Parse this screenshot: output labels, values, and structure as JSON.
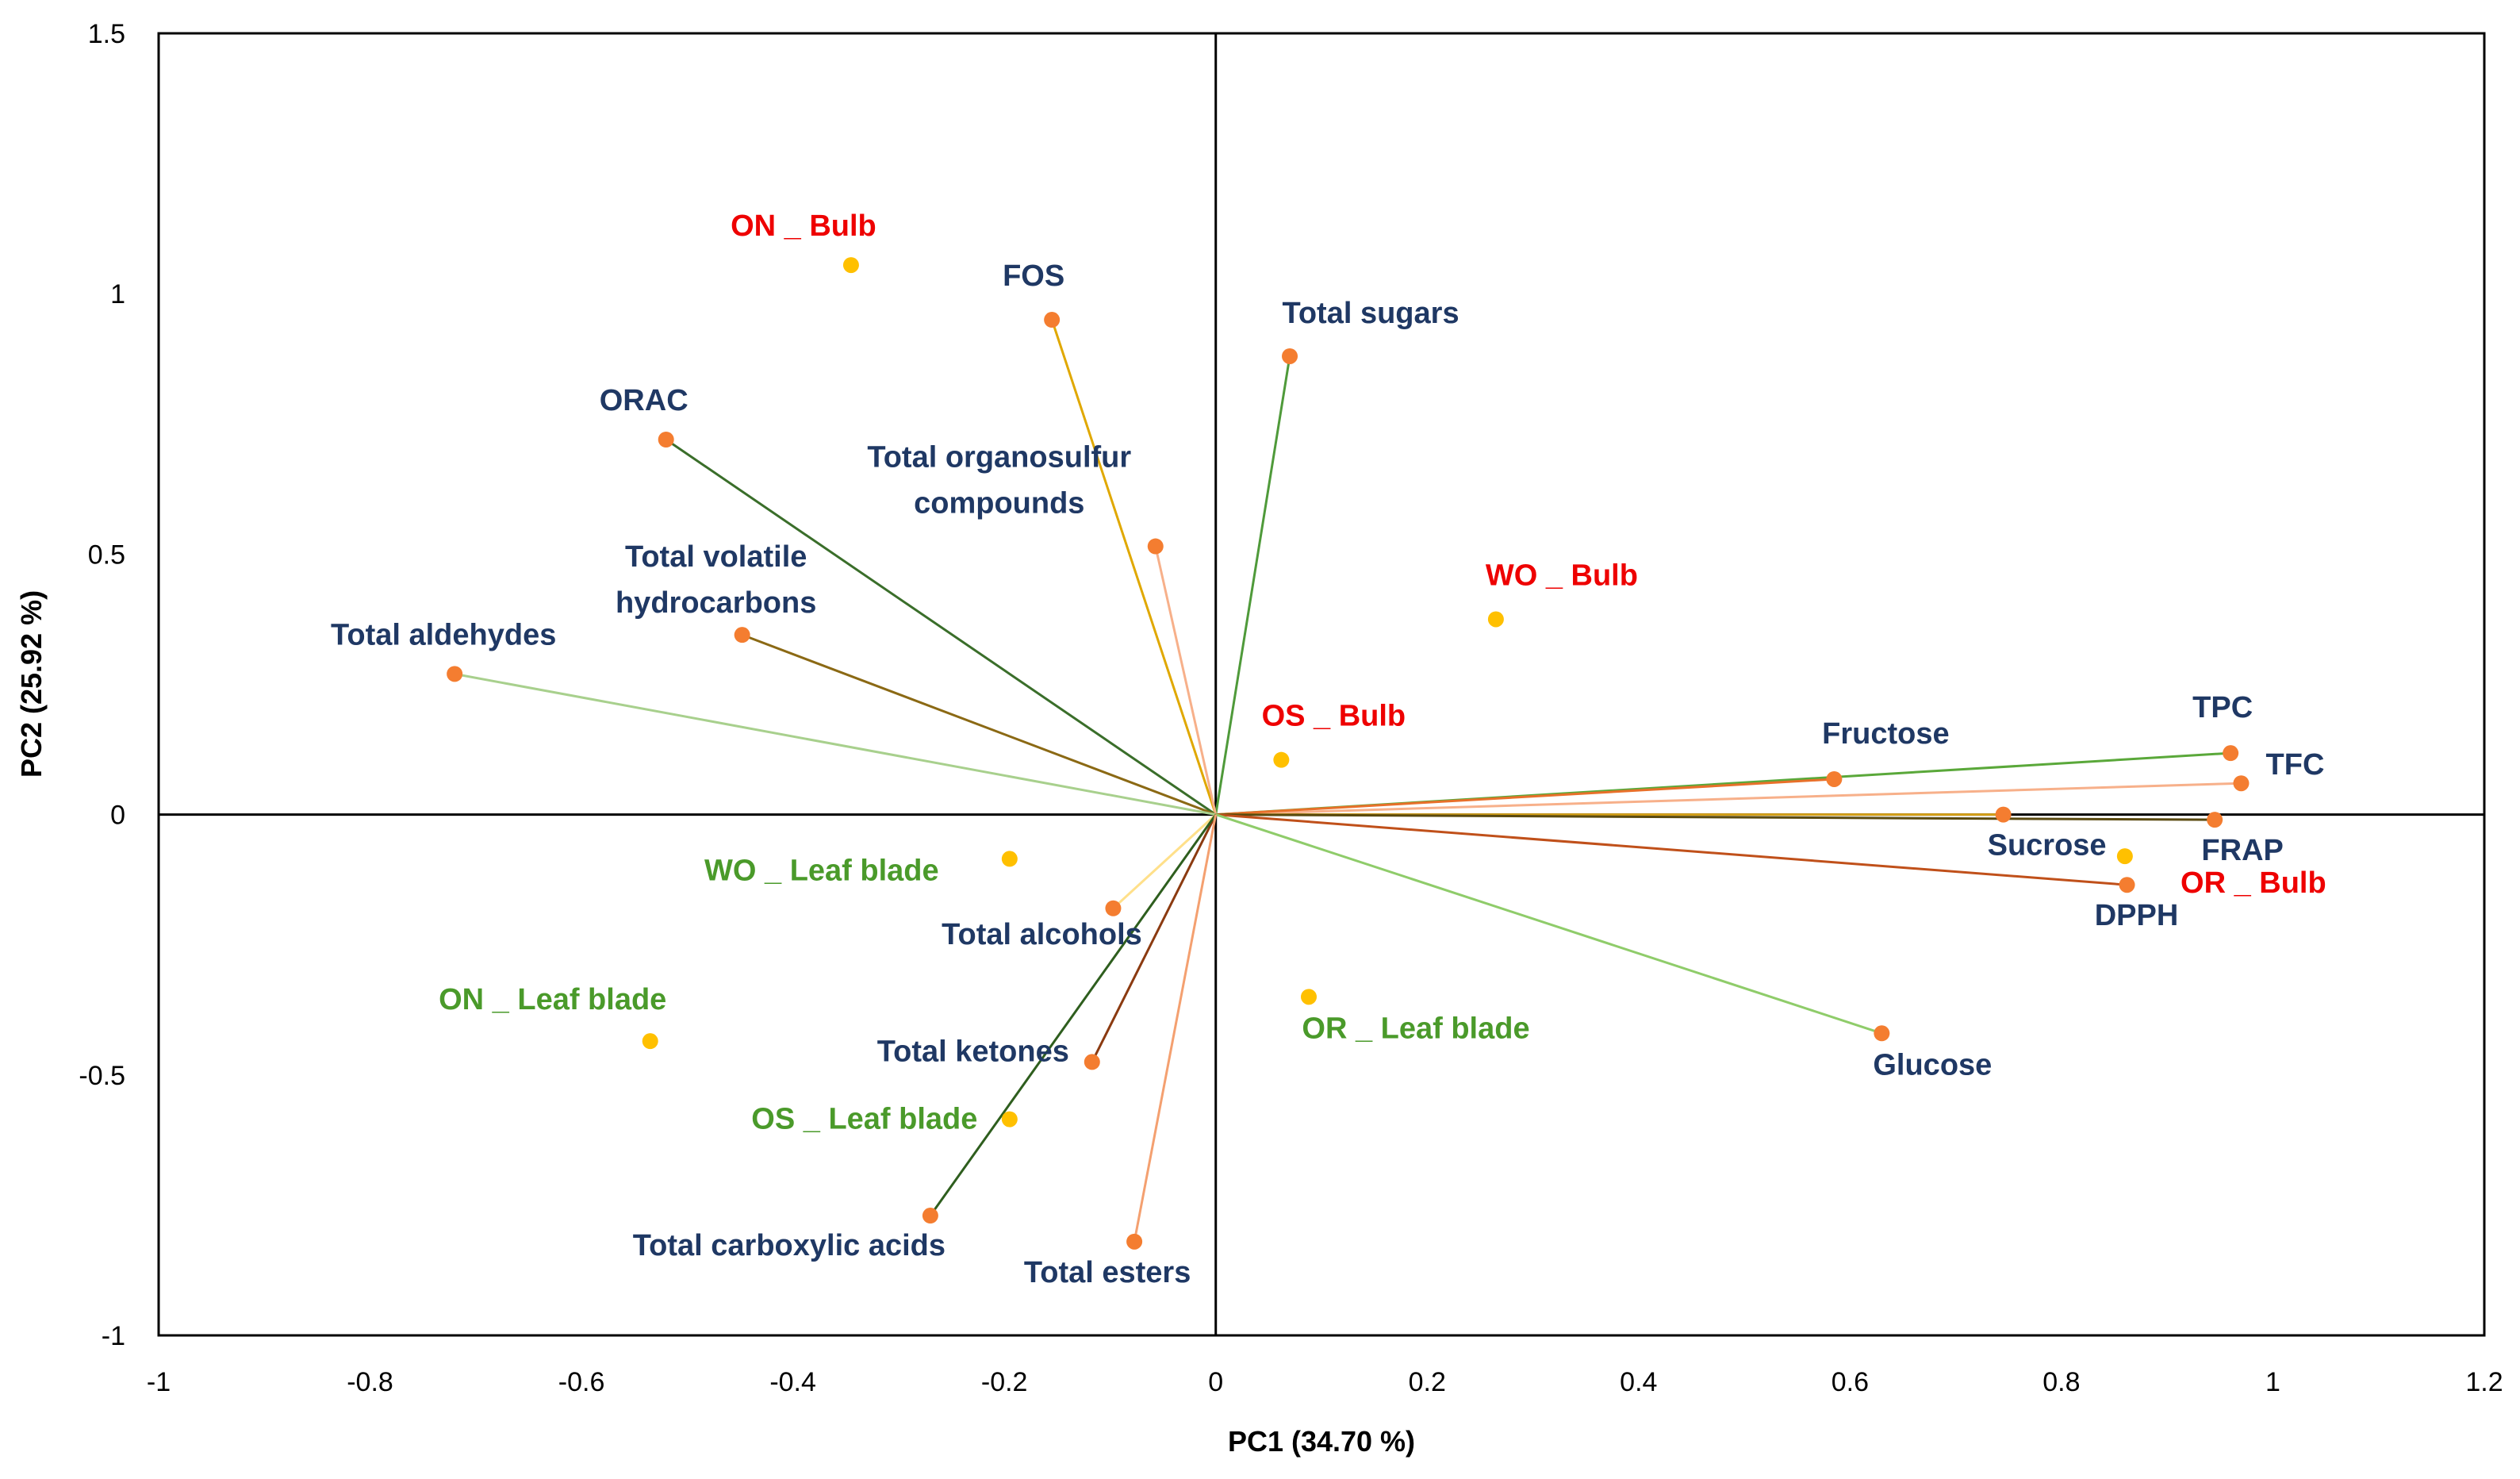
{
  "colors": {
    "variable_label": "#1f3864",
    "bulb_label": "#ee0000",
    "leaf_label": "#4a9a2a",
    "variable_point": "#f47d30",
    "observation_point": "#ffc000",
    "axis_line": "#000000"
  },
  "chart_data": {
    "type": "scatter",
    "title": "",
    "xlabel": "PC1 (34.70 %)",
    "ylabel": "PC2 (25.92 %)",
    "xlim": [
      -1,
      1.2
    ],
    "ylim": [
      -1,
      1.5
    ],
    "xticks": [
      -1,
      -0.8,
      -0.6,
      -0.4,
      -0.2,
      0,
      0.2,
      0.4,
      0.6,
      0.8,
      1,
      1.2
    ],
    "yticks": [
      -1,
      -0.5,
      0,
      0.5,
      1,
      1.5
    ],
    "xtick_labels": [
      "-1",
      "-0.8",
      "-0.6",
      "-0.4",
      "-0.2",
      "0",
      "0.2",
      "0.4",
      "0.6",
      "0.8",
      "1",
      "1.2"
    ],
    "ytick_labels": [
      "-1",
      "-0.5",
      "0",
      "0.5",
      "1",
      "1.5"
    ],
    "grid": false,
    "zero_lines": true,
    "variables": [
      {
        "label": "FOS",
        "x": -0.155,
        "y": 0.95,
        "line_color": "#e0a800"
      },
      {
        "label": "Total sugars",
        "x": 0.07,
        "y": 0.88,
        "line_color": "#4f9a3a"
      },
      {
        "label": "ORAC",
        "x": -0.52,
        "y": 0.72,
        "line_color": "#3a6e2a"
      },
      {
        "label": "Total organosulfur compounds",
        "x": -0.057,
        "y": 0.515,
        "line_color": "#f7b08a"
      },
      {
        "label": "Total volatile hydrocarbons",
        "x": -0.448,
        "y": 0.345,
        "line_color": "#8b6914"
      },
      {
        "label": "Total aldehydes",
        "x": -0.72,
        "y": 0.27,
        "line_color": "#a8d08d"
      },
      {
        "label": "TPC",
        "x": 0.96,
        "y": 0.118,
        "line_color": "#5aa83a"
      },
      {
        "label": "TFC",
        "x": 0.97,
        "y": 0.06,
        "line_color": "#f7b08a"
      },
      {
        "label": "Fructose",
        "x": 0.585,
        "y": 0.068,
        "line_color": "#e8702a"
      },
      {
        "label": "Sucrose",
        "x": 0.745,
        "y": 0.0,
        "line_color": "#d4a017"
      },
      {
        "label": "FRAP",
        "x": 0.945,
        "y": -0.01,
        "line_color": "#5a4a10"
      },
      {
        "label": "DPPH",
        "x": 0.862,
        "y": -0.135,
        "line_color": "#c0501a"
      },
      {
        "label": "Glucose",
        "x": 0.63,
        "y": -0.42,
        "line_color": "#8fcc6a"
      },
      {
        "label": "Total alcohols",
        "x": -0.097,
        "y": -0.18,
        "line_color": "#ffe08a"
      },
      {
        "label": "Total ketones",
        "x": -0.117,
        "y": -0.475,
        "line_color": "#8b3a10"
      },
      {
        "label": "Total carboxylic acids",
        "x": -0.27,
        "y": -0.77,
        "line_color": "#2e5e1e"
      },
      {
        "label": "Total esters",
        "x": -0.077,
        "y": -0.82,
        "line_color": "#f4a070"
      }
    ],
    "observations": [
      {
        "label": "ON _ Bulb",
        "group": "bulb",
        "x": -0.345,
        "y": 1.055
      },
      {
        "label": "WO _ Bulb",
        "group": "bulb",
        "x": 0.265,
        "y": 0.375
      },
      {
        "label": "OS _ Bulb",
        "group": "bulb",
        "x": 0.062,
        "y": 0.105
      },
      {
        "label": "OR _ Bulb",
        "group": "bulb",
        "x": 0.86,
        "y": -0.08
      },
      {
        "label": "WO _ Leaf blade",
        "group": "leaf",
        "x": -0.195,
        "y": -0.085
      },
      {
        "label": "ON _ Leaf blade",
        "group": "leaf",
        "x": -0.535,
        "y": -0.435
      },
      {
        "label": "OS _ Leaf blade",
        "group": "leaf",
        "x": -0.195,
        "y": -0.585
      },
      {
        "label": "OR _ Leaf blade",
        "group": "leaf",
        "x": 0.088,
        "y": -0.35
      }
    ]
  }
}
